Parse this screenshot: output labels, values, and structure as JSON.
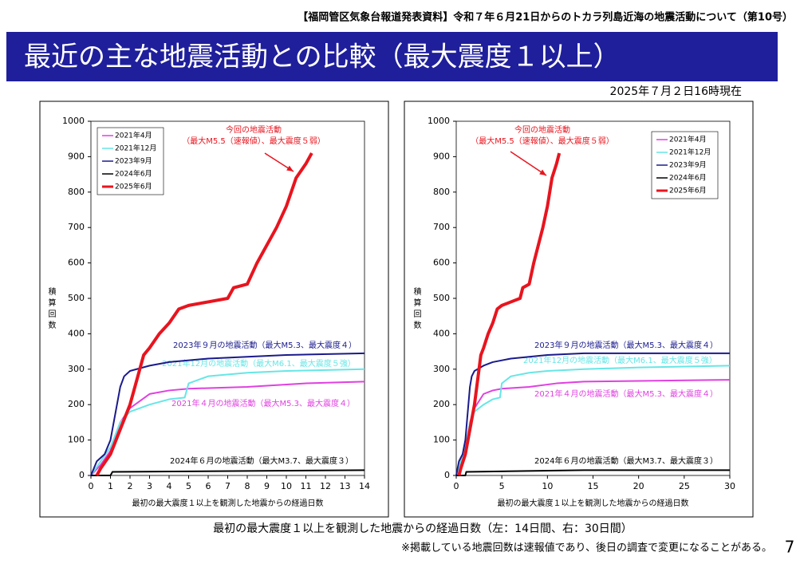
{
  "header": "【福岡管区気象台報道発表資料】令和７年６月21日からのトカラ列島近海の地震活動について（第10号）",
  "title": "最近の主な地震活動との比較（最大震度１以上）",
  "date": "2025年７月２日16時現在",
  "caption": "最初の最大震度１以上を観測した地震からの経過日数（左：14日間、右：30日間）",
  "footnote": "※掲載している地震回数は速報値であり、後日の調査で変更になることがある。",
  "page_number": "7",
  "chart_data": [
    {
      "type": "line",
      "xlabel": "最初の最大震度１以上を観測した地震からの経過日数",
      "ylabel": "積算回数",
      "xlim": [
        0,
        14
      ],
      "xticks": [
        0,
        1,
        2,
        3,
        4,
        5,
        6,
        7,
        8,
        9,
        10,
        11,
        12,
        13,
        14
      ],
      "ylim": [
        0,
        1000
      ],
      "yticks": [
        0,
        100,
        200,
        300,
        400,
        500,
        600,
        700,
        800,
        900,
        1000
      ],
      "series": [
        {
          "name": "2021年4月",
          "color": "#e040e0",
          "annotation": "2021年４月の地震活動（最大M5.3、最大震度４）",
          "x": [
            0,
            0.5,
            1,
            1.5,
            2,
            2.5,
            3,
            4,
            5,
            8,
            11,
            14
          ],
          "values": [
            0,
            30,
            70,
            150,
            190,
            210,
            230,
            240,
            245,
            250,
            260,
            265
          ]
        },
        {
          "name": "2021年12月",
          "color": "#66e6e6",
          "annotation": "2021年12月の地震活動（最大M6.1、最大震度５強）",
          "x": [
            0,
            0.5,
            1,
            1.5,
            2,
            2.5,
            3,
            4,
            4.8,
            5,
            6,
            8,
            10,
            14
          ],
          "values": [
            0,
            40,
            80,
            150,
            180,
            190,
            200,
            215,
            220,
            260,
            280,
            290,
            295,
            300
          ]
        },
        {
          "name": "2023年9月",
          "color": "#1a1a8c",
          "annotation": "2023年９月の地震活動（最大M5.3、最大震度４）",
          "x": [
            0,
            0.3,
            0.7,
            1,
            1.2,
            1.5,
            1.7,
            2,
            3,
            4,
            6,
            8,
            10,
            14
          ],
          "values": [
            0,
            40,
            60,
            100,
            160,
            250,
            280,
            295,
            310,
            320,
            330,
            335,
            340,
            345
          ]
        },
        {
          "name": "2024年6月",
          "color": "#000000",
          "annotation": "2024年６月の地震活動（最大M3.7、最大震度３）",
          "x": [
            0,
            1,
            1.1,
            14
          ],
          "values": [
            0,
            0,
            10,
            15
          ]
        },
        {
          "name": "2025年6月",
          "color": "#e8141e",
          "annotation": [
            "今回の地震活動",
            "（最大M5.5（速報値）、最大震度５弱）"
          ],
          "x": [
            0.3,
            0.5,
            1,
            1.5,
            2,
            2.5,
            2.7,
            3,
            3.5,
            4,
            4.5,
            5,
            6,
            7,
            7.3,
            8,
            8.5,
            9,
            9.5,
            10,
            10.5,
            11,
            11.3
          ],
          "values": [
            0,
            20,
            60,
            130,
            200,
            300,
            340,
            360,
            400,
            430,
            470,
            480,
            490,
            500,
            530,
            540,
            600,
            650,
            700,
            760,
            840,
            880,
            910
          ]
        }
      ]
    },
    {
      "type": "line",
      "xlabel": "最初の最大震度１以上を観測した地震からの経過日数",
      "ylabel": "積算回数",
      "xlim": [
        0,
        30
      ],
      "xticks": [
        0,
        5,
        10,
        15,
        20,
        25,
        30
      ],
      "ylim": [
        0,
        1000
      ],
      "yticks": [
        0,
        100,
        200,
        300,
        400,
        500,
        600,
        700,
        800,
        900,
        1000
      ],
      "series": [
        {
          "name": "2021年4月",
          "color": "#e040e0",
          "annotation": "2021年４月の地震活動（最大M5.3、最大震度４）",
          "x": [
            0,
            0.5,
            1,
            1.5,
            2,
            2.5,
            3,
            4,
            5,
            8,
            11,
            14,
            30
          ],
          "values": [
            0,
            30,
            70,
            150,
            190,
            210,
            230,
            240,
            245,
            250,
            260,
            265,
            270
          ]
        },
        {
          "name": "2021年12月",
          "color": "#66e6e6",
          "annotation": "2021年12月の地震活動（最大M6.1、最大震度５強）",
          "x": [
            0,
            0.5,
            1,
            1.5,
            2,
            2.5,
            3,
            4,
            4.8,
            5,
            6,
            8,
            10,
            14,
            20,
            30
          ],
          "values": [
            0,
            40,
            80,
            150,
            180,
            190,
            200,
            215,
            220,
            260,
            280,
            290,
            295,
            300,
            305,
            310
          ]
        },
        {
          "name": "2023年9月",
          "color": "#1a1a8c",
          "annotation": "2023年９月の地震活動（最大M5.3、最大震度４）",
          "x": [
            0,
            0.3,
            0.7,
            1,
            1.2,
            1.5,
            1.7,
            2,
            3,
            4,
            6,
            8,
            10,
            14,
            30
          ],
          "values": [
            0,
            40,
            60,
            100,
            160,
            250,
            280,
            295,
            310,
            320,
            330,
            335,
            340,
            345,
            345
          ]
        },
        {
          "name": "2024年6月",
          "color": "#000000",
          "annotation": "2024年６月の地震活動（最大M3.7、最大震度３）",
          "x": [
            0,
            1,
            1.1,
            14,
            30
          ],
          "values": [
            0,
            0,
            10,
            15,
            15
          ]
        },
        {
          "name": "2025年6月",
          "color": "#e8141e",
          "annotation": [
            "今回の地震活動",
            "（最大M5.5（速報値）、最大震度５弱）"
          ],
          "x": [
            0.3,
            0.5,
            1,
            1.5,
            2,
            2.5,
            2.7,
            3,
            3.5,
            4,
            4.5,
            5,
            6,
            7,
            7.3,
            8,
            8.5,
            9,
            9.5,
            10,
            10.5,
            11,
            11.3
          ],
          "values": [
            0,
            20,
            60,
            130,
            200,
            300,
            340,
            360,
            400,
            430,
            470,
            480,
            490,
            500,
            530,
            540,
            600,
            650,
            700,
            760,
            840,
            880,
            910
          ]
        }
      ]
    }
  ]
}
